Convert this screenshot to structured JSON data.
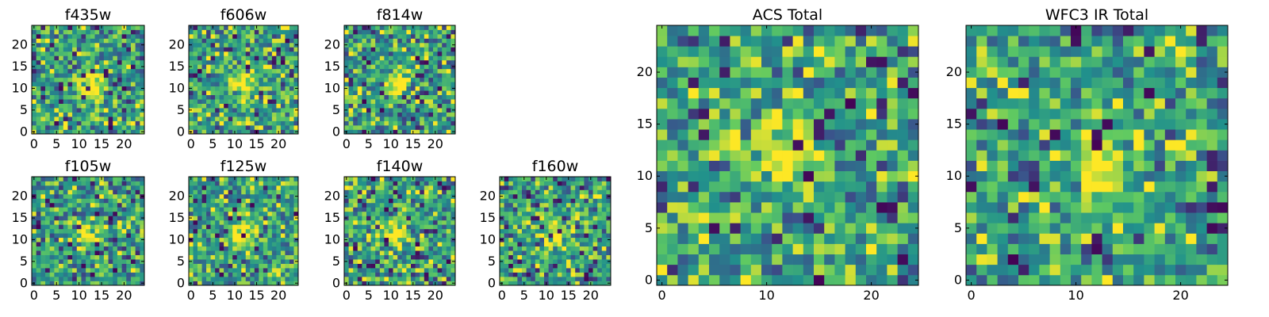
{
  "chart_data": [
    {
      "type": "heatmap",
      "title": "f435w",
      "xlim": [
        0,
        24
      ],
      "ylim": [
        0,
        24
      ],
      "xticks": [
        0,
        5,
        10,
        15,
        20
      ],
      "yticks": [
        0,
        5,
        10,
        15,
        20
      ],
      "source_peak": [
        13,
        11
      ],
      "grid": false
    },
    {
      "type": "heatmap",
      "title": "f606w",
      "xlim": [
        0,
        24
      ],
      "ylim": [
        0,
        24
      ],
      "xticks": [
        0,
        5,
        10,
        15,
        20
      ],
      "yticks": [
        0,
        5,
        10,
        15,
        20
      ],
      "source_peak": [
        12,
        11
      ],
      "grid": false
    },
    {
      "type": "heatmap",
      "title": "f814w",
      "xlim": [
        0,
        24
      ],
      "ylim": [
        0,
        24
      ],
      "xticks": [
        0,
        5,
        10,
        15,
        20
      ],
      "yticks": [
        0,
        5,
        10,
        15,
        20
      ],
      "source_peak": [
        12,
        11
      ],
      "grid": false
    },
    {
      "type": "heatmap",
      "title": "f105w",
      "xlim": [
        0,
        24
      ],
      "ylim": [
        0,
        24
      ],
      "xticks": [
        0,
        5,
        10,
        15,
        20
      ],
      "yticks": [
        0,
        5,
        10,
        15,
        20
      ],
      "source_peak": [
        12,
        11
      ],
      "grid": false
    },
    {
      "type": "heatmap",
      "title": "f125w",
      "xlim": [
        0,
        24
      ],
      "ylim": [
        0,
        24
      ],
      "xticks": [
        0,
        5,
        10,
        15,
        20
      ],
      "yticks": [
        0,
        5,
        10,
        15,
        20
      ],
      "source_peak": [
        12,
        11
      ],
      "grid": false
    },
    {
      "type": "heatmap",
      "title": "f140w",
      "xlim": [
        0,
        24
      ],
      "ylim": [
        0,
        24
      ],
      "xticks": [
        0,
        5,
        10,
        15,
        20
      ],
      "yticks": [
        0,
        5,
        10,
        15,
        20
      ],
      "source_peak": [
        11,
        11
      ],
      "grid": false
    },
    {
      "type": "heatmap",
      "title": "f160w",
      "xlim": [
        0,
        24
      ],
      "ylim": [
        0,
        24
      ],
      "xticks": [
        0,
        5,
        10,
        15,
        20
      ],
      "yticks": [
        0,
        5,
        10,
        15,
        20
      ],
      "source_peak": [
        12,
        11
      ],
      "grid": false
    },
    {
      "type": "heatmap",
      "title": "ACS Total",
      "xlim": [
        0,
        24
      ],
      "ylim": [
        0,
        24
      ],
      "xticks": [
        0,
        10,
        20
      ],
      "yticks": [
        0,
        5,
        10,
        15,
        20
      ],
      "source_peak": [
        12,
        12
      ],
      "grid": false
    },
    {
      "type": "heatmap",
      "title": "WFC3 IR Total",
      "xlim": [
        0,
        24
      ],
      "ylim": [
        0,
        24
      ],
      "xticks": [
        0,
        10,
        20
      ],
      "yticks": [
        0,
        5,
        10,
        15,
        20
      ],
      "source_peak": [
        12,
        11
      ],
      "grid": false
    }
  ],
  "colormap": [
    "#440154",
    "#3b528b",
    "#21918c",
    "#5ec962",
    "#fde725"
  ]
}
